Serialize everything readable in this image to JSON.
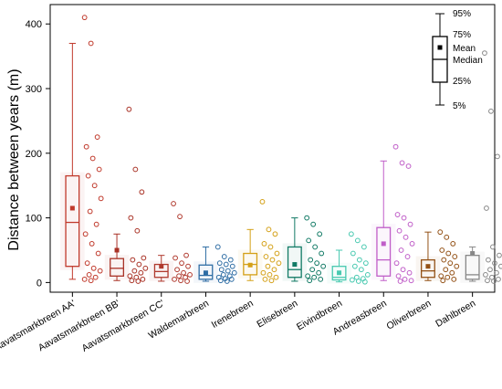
{
  "chart_data": {
    "type": "box",
    "ylabel": "Distance between years (m)",
    "ylim": [
      -15,
      430
    ],
    "yticks": [
      0,
      100,
      200,
      300,
      400
    ],
    "legend": {
      "placement": "top-right",
      "labels": {
        "p95": "95%",
        "p75": "75%",
        "mean": "Mean",
        "median": "Median",
        "p25": "25%",
        "p5": "5%"
      }
    },
    "series": [
      {
        "name": "Aavatsmarkbreen AA'",
        "color": "#c0392b",
        "p5": 5,
        "q1": 25,
        "median": 93,
        "q3": 165,
        "p95": 370,
        "mean": 115,
        "points": [
          410,
          370,
          225,
          210,
          192,
          175,
          165,
          150,
          130,
          110,
          90,
          75,
          60,
          45,
          30,
          22,
          18,
          12,
          8,
          5,
          3
        ]
      },
      {
        "name": "Aavatsmarkbreen BB'",
        "color": "#a93226",
        "p5": 3,
        "q1": 10,
        "median": 22,
        "q3": 37,
        "p95": 75,
        "mean": 50,
        "points": [
          268,
          175,
          140,
          100,
          80,
          38,
          35,
          28,
          22,
          18,
          15,
          10,
          8,
          5,
          3,
          2
        ]
      },
      {
        "name": "Aavatsmarkbreen CC'",
        "color": "#b03a2e",
        "p5": 2,
        "q1": 8,
        "median": 17,
        "q3": 28,
        "p95": 42,
        "mean": 25,
        "points": [
          122,
          102,
          42,
          38,
          30,
          25,
          20,
          15,
          12,
          10,
          8,
          5,
          3,
          2
        ]
      },
      {
        "name": "Waldemarbreen",
        "color": "#2e6da4",
        "p5": 2,
        "q1": 5,
        "median": 11,
        "q3": 27,
        "p95": 55,
        "mean": 15,
        "points": [
          55,
          40,
          35,
          30,
          28,
          25,
          20,
          18,
          15,
          12,
          10,
          8,
          6,
          5,
          3,
          2
        ]
      },
      {
        "name": "Irenebreen",
        "color": "#d4a017",
        "p5": 3,
        "q1": 12,
        "median": 28,
        "q3": 45,
        "p95": 82,
        "mean": 27,
        "points": [
          125,
          82,
          75,
          60,
          55,
          45,
          40,
          35,
          30,
          25,
          20,
          15,
          12,
          8,
          5,
          3
        ]
      },
      {
        "name": "Elisebreen",
        "color": "#117a65",
        "p5": 2,
        "q1": 8,
        "median": 20,
        "q3": 55,
        "p95": 100,
        "mean": 28,
        "points": [
          100,
          90,
          75,
          65,
          55,
          45,
          35,
          30,
          25,
          20,
          15,
          10,
          8,
          5,
          3
        ]
      },
      {
        "name": "Eivindbreen",
        "color": "#48c9b0",
        "p5": 1,
        "q1": 4,
        "median": 8,
        "q3": 25,
        "p95": 50,
        "mean": 15,
        "points": [
          75,
          65,
          55,
          45,
          35,
          30,
          25,
          20,
          12,
          8,
          6,
          4,
          2,
          1
        ]
      },
      {
        "name": "Andreasbreen",
        "color": "#c05ec8",
        "p5": 3,
        "q1": 10,
        "median": 35,
        "q3": 85,
        "p95": 188,
        "mean": 60,
        "points": [
          210,
          185,
          180,
          105,
          100,
          90,
          80,
          70,
          60,
          50,
          40,
          30,
          20,
          15,
          10,
          5,
          3,
          2
        ]
      },
      {
        "name": "Oliverbreen",
        "color": "#935116",
        "p5": 3,
        "q1": 8,
        "median": 18,
        "q3": 35,
        "p95": 78,
        "mean": 25,
        "points": [
          78,
          70,
          60,
          50,
          45,
          40,
          35,
          30,
          25,
          20,
          15,
          10,
          8,
          5,
          3
        ]
      },
      {
        "name": "Dahlbreen",
        "color": "#888888",
        "p5": 2,
        "q1": 5,
        "median": 12,
        "q3": 42,
        "p95": 55,
        "mean": 45,
        "points": [
          355,
          265,
          195,
          115,
          55,
          42,
          35,
          30,
          25,
          20,
          15,
          12,
          8,
          5,
          3,
          2
        ]
      }
    ]
  }
}
